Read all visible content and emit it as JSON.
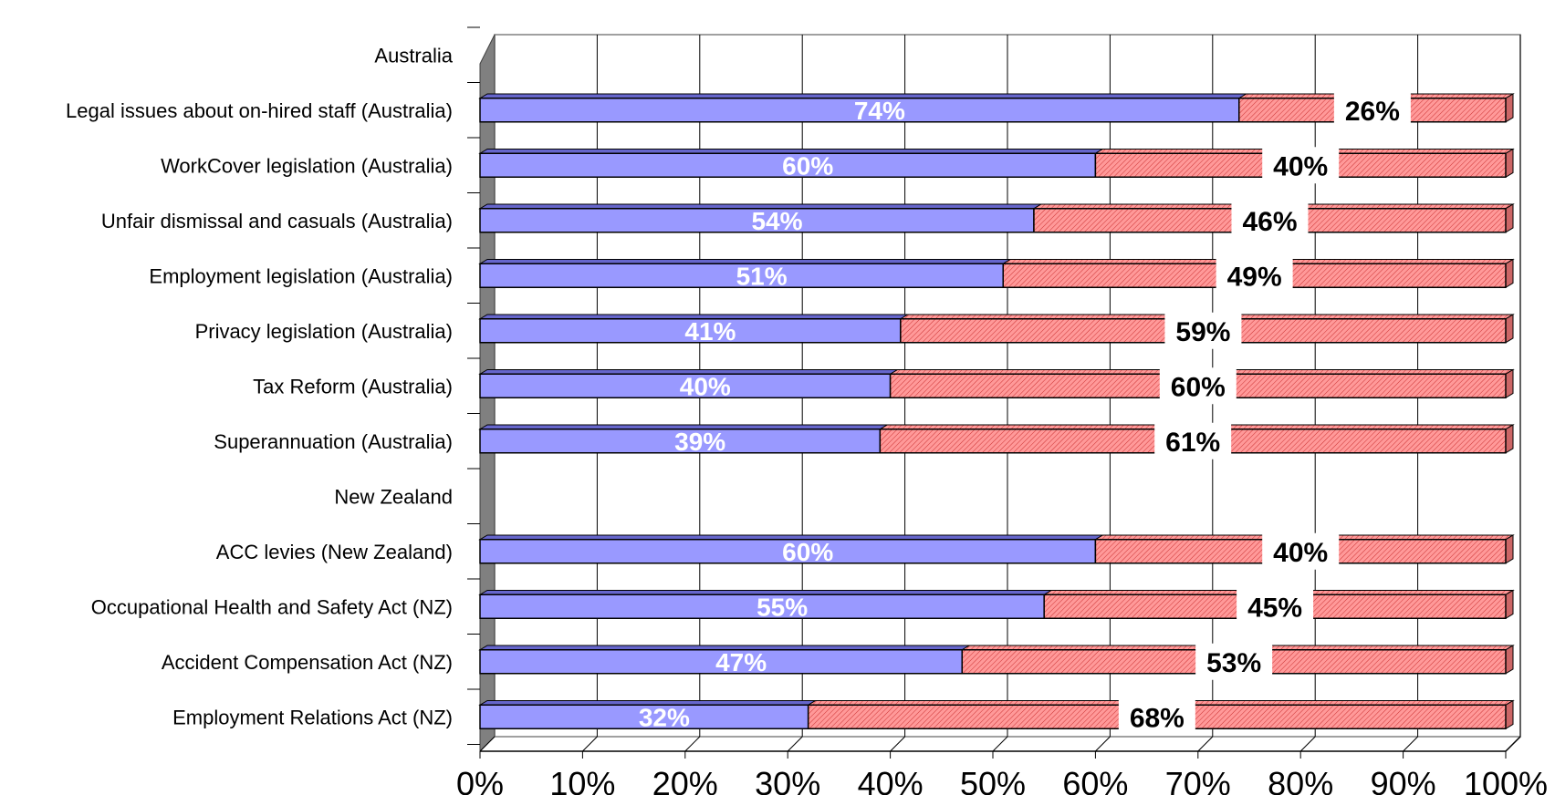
{
  "chart_data": {
    "type": "bar",
    "orientation": "horizontal",
    "stacked": true,
    "categories": [
      "Australia",
      "Legal issues about on-hired staff (Australia)",
      "WorkCover legislation (Australia)",
      "Unfair dismissal and casuals (Australia)",
      "Employment legislation (Australia)",
      "Privacy legislation (Australia)",
      "Tax Reform (Australia)",
      "Superannuation (Australia)",
      "New Zealand",
      "ACC levies (New Zealand)",
      "Occupational Health and Safety Act (NZ)",
      "Accident Compensation Act (NZ)",
      "Employment Relations Act (NZ)"
    ],
    "series": [
      {
        "values": [
          null,
          74,
          60,
          54,
          51,
          41,
          40,
          39,
          null,
          60,
          55,
          47,
          32
        ],
        "labels": [
          "",
          "74%",
          "60%",
          "54%",
          "51%",
          "41%",
          "40%",
          "39%",
          "",
          "60%",
          "55%",
          "47%",
          "32%"
        ],
        "color": "#9999ff",
        "fill": "solid"
      },
      {
        "values": [
          null,
          26,
          40,
          46,
          49,
          59,
          60,
          61,
          null,
          40,
          45,
          53,
          68
        ],
        "labels": [
          "",
          "26%",
          "40%",
          "46%",
          "49%",
          "59%",
          "60%",
          "61%",
          "",
          "40%",
          "45%",
          "53%",
          "68%"
        ],
        "color": "#ff9999",
        "fill": "hatched"
      }
    ],
    "xlim": [
      0,
      100
    ],
    "x_ticks": [
      "0%",
      "10%",
      "20%",
      "30%",
      "40%",
      "50%",
      "60%",
      "70%",
      "80%",
      "90%",
      "100%"
    ],
    "title": "",
    "xlabel": "",
    "ylabel": "",
    "grid": true,
    "legend": "none",
    "style": "3d"
  }
}
